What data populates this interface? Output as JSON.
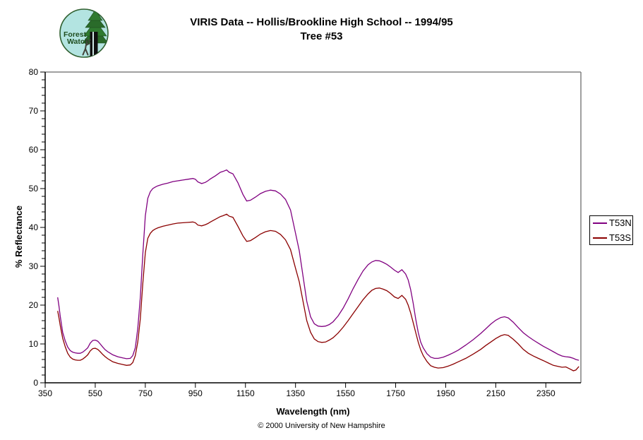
{
  "logo": {
    "line1": "Forest",
    "line2": "Watch",
    "bg_color": "#b3e4e1",
    "ring_color": "#2f5f2f",
    "tree_color": "#2a6b2a",
    "trunk_color": "#101010",
    "text_color": "#1e4d1e"
  },
  "header": {
    "title_line1": "VIRIS Data -- Hollis/Brookline High School -- 1994/95",
    "title_line2": "Tree #53"
  },
  "footer": {
    "copyright": "© 2000 University of New Hampshire"
  },
  "colors": {
    "axis": "#000000",
    "frame": "#808080",
    "background": "#ffffff"
  },
  "chart_data": {
    "type": "line",
    "title": "VIRIS Data -- Hollis/Brookline High School -- 1994/95 Tree #53",
    "xlabel": "Wavelength (nm)",
    "ylabel": "% Reflectance",
    "xlim": [
      350,
      2490
    ],
    "ylim": [
      0,
      80
    ],
    "x_ticks": [
      350,
      550,
      750,
      950,
      1150,
      1350,
      1550,
      1750,
      1950,
      2150,
      2350
    ],
    "y_ticks": [
      0,
      10,
      20,
      30,
      40,
      50,
      60,
      70,
      80
    ],
    "y_minor_step": 2,
    "grid": false,
    "legend_position": "right",
    "x": [
      400,
      405,
      410,
      420,
      430,
      440,
      450,
      460,
      470,
      480,
      490,
      500,
      510,
      520,
      530,
      540,
      550,
      560,
      570,
      580,
      590,
      600,
      610,
      620,
      640,
      660,
      675,
      690,
      700,
      710,
      720,
      730,
      740,
      750,
      760,
      770,
      780,
      790,
      800,
      820,
      840,
      860,
      880,
      900,
      920,
      940,
      950,
      960,
      975,
      990,
      1000,
      1010,
      1030,
      1050,
      1060,
      1075,
      1085,
      1100,
      1120,
      1140,
      1155,
      1170,
      1190,
      1210,
      1230,
      1250,
      1270,
      1290,
      1310,
      1330,
      1350,
      1365,
      1380,
      1395,
      1410,
      1425,
      1440,
      1455,
      1470,
      1485,
      1500,
      1520,
      1540,
      1560,
      1580,
      1600,
      1620,
      1640,
      1655,
      1670,
      1685,
      1700,
      1715,
      1730,
      1745,
      1760,
      1775,
      1790,
      1800,
      1810,
      1820,
      1830,
      1840,
      1850,
      1860,
      1875,
      1890,
      1905,
      1920,
      1940,
      1960,
      1980,
      2000,
      2030,
      2060,
      2090,
      2110,
      2130,
      2150,
      2170,
      2185,
      2200,
      2220,
      2240,
      2260,
      2280,
      2300,
      2320,
      2340,
      2360,
      2380,
      2400,
      2415,
      2430,
      2445,
      2460,
      2470,
      2482
    ],
    "series": [
      {
        "name": "T53N",
        "color": "#800080",
        "values": [
          22.0,
          19.8,
          17.2,
          13.0,
          10.8,
          9.2,
          8.3,
          7.9,
          7.7,
          7.6,
          7.6,
          7.9,
          8.4,
          9.0,
          10.2,
          10.9,
          11.0,
          10.7,
          10.0,
          9.2,
          8.5,
          8.0,
          7.6,
          7.2,
          6.7,
          6.4,
          6.2,
          6.3,
          7.0,
          9.0,
          14.0,
          22.0,
          33.0,
          43.0,
          47.5,
          49.2,
          50.0,
          50.4,
          50.7,
          51.1,
          51.4,
          51.8,
          52.0,
          52.2,
          52.4,
          52.6,
          52.4,
          51.7,
          51.3,
          51.6,
          52.0,
          52.5,
          53.3,
          54.2,
          54.4,
          54.8,
          54.2,
          53.8,
          51.5,
          48.5,
          46.8,
          47.0,
          47.8,
          48.7,
          49.3,
          49.6,
          49.4,
          48.6,
          47.2,
          44.5,
          38.5,
          34.0,
          27.5,
          21.0,
          17.0,
          15.2,
          14.6,
          14.5,
          14.6,
          15.0,
          15.7,
          17.2,
          19.2,
          21.6,
          24.2,
          26.6,
          28.8,
          30.4,
          31.1,
          31.5,
          31.4,
          31.0,
          30.5,
          29.8,
          29.0,
          28.4,
          29.1,
          28.0,
          26.5,
          24.0,
          20.5,
          16.5,
          13.0,
          10.5,
          9.0,
          7.5,
          6.6,
          6.3,
          6.3,
          6.6,
          7.1,
          7.7,
          8.4,
          9.7,
          11.1,
          12.7,
          13.9,
          15.1,
          16.1,
          16.8,
          17.0,
          16.7,
          15.6,
          14.2,
          12.9,
          11.9,
          11.0,
          10.2,
          9.4,
          8.7,
          8.0,
          7.3,
          6.9,
          6.7,
          6.6,
          6.3,
          6.0,
          5.8
        ]
      },
      {
        "name": "T53S",
        "color": "#8B0000",
        "values": [
          18.5,
          16.8,
          14.8,
          11.5,
          9.3,
          7.6,
          6.6,
          6.1,
          5.9,
          5.8,
          5.8,
          6.1,
          6.6,
          7.2,
          8.2,
          8.8,
          8.9,
          8.6,
          8.0,
          7.3,
          6.7,
          6.2,
          5.8,
          5.4,
          5.0,
          4.7,
          4.5,
          4.6,
          5.2,
          7.0,
          10.5,
          16.5,
          25.5,
          33.5,
          37.2,
          38.5,
          39.2,
          39.6,
          39.9,
          40.3,
          40.6,
          40.9,
          41.1,
          41.2,
          41.3,
          41.4,
          41.2,
          40.6,
          40.4,
          40.7,
          41.0,
          41.4,
          42.1,
          42.8,
          43.0,
          43.4,
          42.9,
          42.6,
          40.3,
          37.8,
          36.4,
          36.6,
          37.4,
          38.3,
          38.9,
          39.2,
          39.0,
          38.2,
          36.8,
          34.3,
          29.5,
          26.0,
          21.0,
          16.0,
          13.0,
          11.3,
          10.6,
          10.4,
          10.5,
          11.0,
          11.6,
          12.8,
          14.3,
          16.0,
          17.8,
          19.6,
          21.4,
          22.9,
          23.8,
          24.3,
          24.4,
          24.1,
          23.7,
          23.0,
          22.1,
          21.7,
          22.5,
          21.5,
          20.0,
          18.0,
          15.5,
          13.0,
          10.5,
          8.5,
          7.0,
          5.5,
          4.4,
          4.0,
          3.8,
          3.9,
          4.3,
          4.8,
          5.4,
          6.3,
          7.4,
          8.6,
          9.6,
          10.5,
          11.4,
          12.1,
          12.4,
          12.2,
          11.2,
          10.0,
          8.6,
          7.6,
          6.9,
          6.3,
          5.7,
          5.1,
          4.5,
          4.2,
          4.0,
          4.1,
          3.6,
          3.1,
          3.3,
          4.2
        ]
      }
    ]
  }
}
